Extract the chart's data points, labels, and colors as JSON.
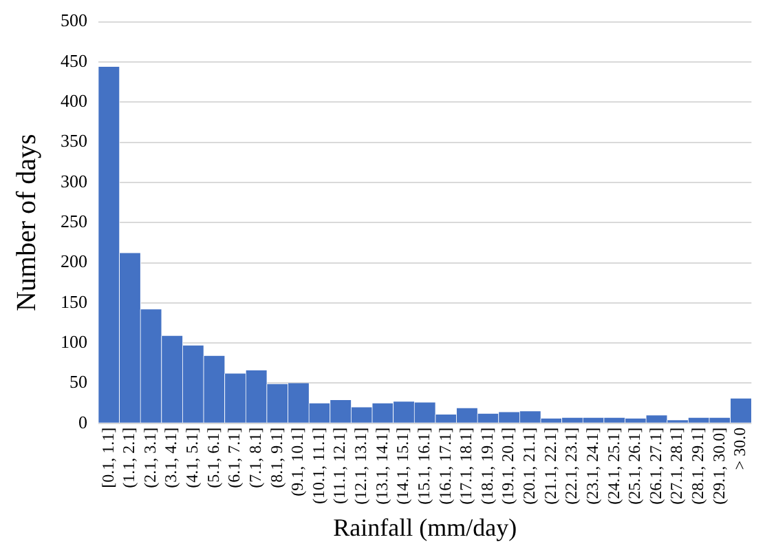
{
  "chart_data": {
    "type": "bar",
    "xlabel": "Rainfall (mm/day)",
    "ylabel": "Number of days",
    "categories": [
      "[0.1, 1.1]",
      "(1.1, 2.1]",
      "(2.1, 3.1]",
      "(3.1, 4.1]",
      "(4.1, 5.1]",
      "(5.1, 6.1]",
      "(6.1, 7.1]",
      "(7.1, 8.1]",
      "(8.1, 9.1]",
      "(9.1, 10.1]",
      "(10.1, 11.1]",
      "(11.1, 12.1]",
      "(12.1, 13.1]",
      "(13.1, 14.1]",
      "(14.1, 15.1]",
      "(15.1, 16.1]",
      "(16.1, 17.1]",
      "(17.1, 18.1]",
      "(18.1, 19.1]",
      "(19.1, 20.1]",
      "(20.1, 21.1]",
      "(21.1, 22.1]",
      "(22.1, 23.1]",
      "(23.1, 24.1]",
      "(24.1, 25.1]",
      "(25.1, 26.1]",
      "(26.1, 27.1]",
      "(27.1, 28.1]",
      "(28.1, 29.1]",
      "(29.1, 30.0]",
      "> 30.0"
    ],
    "values": [
      444,
      212,
      142,
      109,
      97,
      84,
      62,
      66,
      49,
      50,
      25,
      29,
      20,
      25,
      27,
      26,
      11,
      19,
      12,
      14,
      15,
      6,
      7,
      7,
      7,
      6,
      10,
      4,
      7,
      7,
      31
    ],
    "color": "#4472c4",
    "ylim": [
      0,
      500
    ],
    "yticks": [
      0,
      50,
      100,
      150,
      200,
      250,
      300,
      350,
      400,
      450,
      500
    ],
    "grid": "y",
    "legend": false
  }
}
